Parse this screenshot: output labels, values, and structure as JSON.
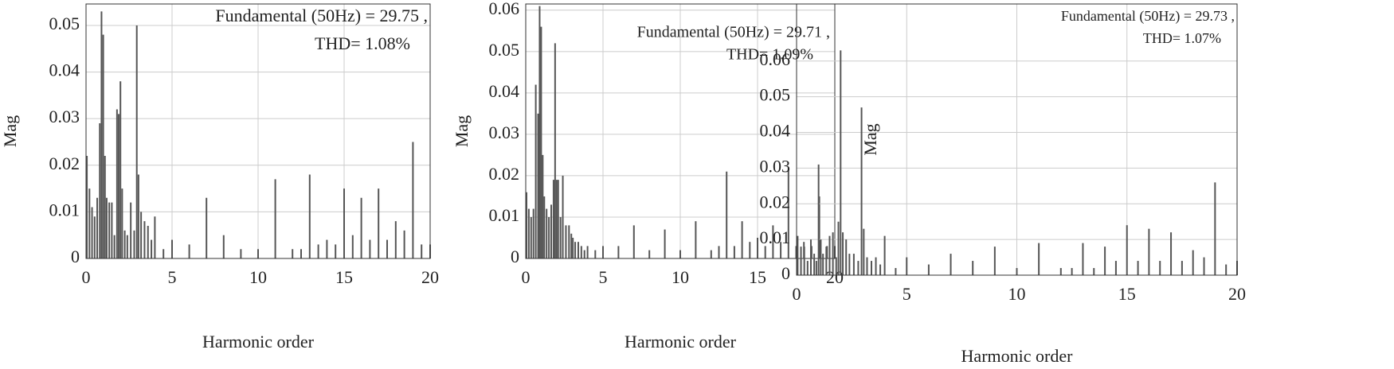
{
  "chart_data": [
    {
      "type": "stem",
      "ylabel": "Mag",
      "xlabel": "Harmonic order",
      "annotation": [
        "Fundamental (50Hz) = 29.75 ,",
        "THD= 1.08%"
      ],
      "color": "#555555",
      "grid": true,
      "xlim": [
        0,
        20
      ],
      "xticks": [
        0,
        5,
        10,
        15,
        20
      ],
      "ylim": [
        0,
        0.0546
      ],
      "yticks": [
        0,
        0.01,
        0.02,
        0.03,
        0.04,
        0.05
      ],
      "x": [
        0.05,
        0.2,
        0.35,
        0.5,
        0.65,
        0.8,
        0.9,
        1.0,
        1.1,
        1.2,
        1.35,
        1.5,
        1.65,
        1.8,
        1.9,
        2.0,
        2.1,
        2.25,
        2.4,
        2.6,
        2.8,
        2.95,
        3.05,
        3.2,
        3.4,
        3.6,
        3.8,
        4.0,
        4.5,
        5.0,
        6.0,
        7.0,
        8.0,
        9.0,
        10.0,
        11.0,
        12.0,
        12.5,
        13.0,
        13.5,
        14.0,
        14.5,
        15.0,
        15.5,
        16.0,
        16.5,
        17.0,
        17.5,
        18.0,
        18.5,
        19.0,
        19.5,
        20.0
      ],
      "values": [
        0.022,
        0.015,
        0.011,
        0.009,
        0.013,
        0.029,
        0.053,
        0.048,
        0.022,
        0.013,
        0.012,
        0.012,
        0.005,
        0.032,
        0.031,
        0.038,
        0.015,
        0.006,
        0.005,
        0.012,
        0.006,
        0.05,
        0.018,
        0.01,
        0.008,
        0.007,
        0.004,
        0.009,
        0.002,
        0.004,
        0.003,
        0.013,
        0.005,
        0.002,
        0.002,
        0.017,
        0.002,
        0.002,
        0.018,
        0.003,
        0.004,
        0.003,
        0.015,
        0.005,
        0.013,
        0.004,
        0.015,
        0.004,
        0.008,
        0.006,
        0.025,
        0.003,
        0.003
      ]
    },
    {
      "type": "stem",
      "ylabel": "Mag",
      "xlabel": "Harmonic order",
      "annotation": [
        "Fundamental (50Hz) = 29.71 ,",
        "THD= 1.09%"
      ],
      "color": "#555555",
      "grid": true,
      "xlim": [
        0,
        20
      ],
      "xticks": [
        0,
        5,
        10,
        15,
        20
      ],
      "ylim": [
        0,
        0.0615
      ],
      "yticks": [
        0,
        0.01,
        0.02,
        0.03,
        0.04,
        0.05,
        0.06
      ],
      "x": [
        0.05,
        0.2,
        0.35,
        0.5,
        0.65,
        0.8,
        0.9,
        1.0,
        1.1,
        1.2,
        1.35,
        1.5,
        1.65,
        1.8,
        1.9,
        2.0,
        2.1,
        2.25,
        2.4,
        2.6,
        2.8,
        2.95,
        3.05,
        3.2,
        3.4,
        3.6,
        3.8,
        4.0,
        4.5,
        5.0,
        6.0,
        7.0,
        8.0,
        9.0,
        10.0,
        11.0,
        12.0,
        12.5,
        13.0,
        13.5,
        14.0,
        14.5,
        15.0,
        15.5,
        16.0,
        16.5,
        17.0,
        17.5,
        18.0,
        18.5,
        19.0,
        19.5,
        20.0
      ],
      "values": [
        0.016,
        0.012,
        0.01,
        0.012,
        0.042,
        0.035,
        0.061,
        0.056,
        0.025,
        0.015,
        0.012,
        0.01,
        0.013,
        0.019,
        0.052,
        0.019,
        0.019,
        0.01,
        0.02,
        0.008,
        0.008,
        0.006,
        0.005,
        0.004,
        0.004,
        0.003,
        0.002,
        0.003,
        0.002,
        0.003,
        0.003,
        0.008,
        0.002,
        0.007,
        0.002,
        0.009,
        0.002,
        0.003,
        0.021,
        0.003,
        0.009,
        0.004,
        0.005,
        0.003,
        0.008,
        0.004,
        0.022,
        0.003,
        0.004,
        0.003,
        0.015,
        0.003,
        0.003
      ]
    },
    {
      "type": "stem",
      "ylabel": "Mag",
      "xlabel": "Harmonic order",
      "annotation": [
        "Fundamental (50Hz) = 29.73 ,",
        "THD= 1.07%"
      ],
      "color": "#555555",
      "grid": true,
      "xlim": [
        0,
        20
      ],
      "xticks": [
        0,
        5,
        10,
        15,
        20
      ],
      "ylim": [
        0,
        0.076
      ],
      "yticks": [
        0,
        0.01,
        0.02,
        0.03,
        0.04,
        0.05,
        0.06
      ],
      "x": [
        0.05,
        0.2,
        0.35,
        0.5,
        0.65,
        0.8,
        0.9,
        1.0,
        1.1,
        1.2,
        1.35,
        1.5,
        1.65,
        1.8,
        1.9,
        2.0,
        2.1,
        2.25,
        2.4,
        2.6,
        2.8,
        2.95,
        3.05,
        3.2,
        3.4,
        3.6,
        3.8,
        4.0,
        4.5,
        5.0,
        6.0,
        7.0,
        8.0,
        9.0,
        10.0,
        11.0,
        12.0,
        12.5,
        13.0,
        13.5,
        14.0,
        14.5,
        15.0,
        15.5,
        16.0,
        16.5,
        17.0,
        17.5,
        18.0,
        18.5,
        19.0,
        19.5,
        20.0
      ],
      "values": [
        0.011,
        0.008,
        0.008,
        0.004,
        0.01,
        0.006,
        0.004,
        0.031,
        0.01,
        0.006,
        0.008,
        0.011,
        0.012,
        0.005,
        0.015,
        0.063,
        0.012,
        0.01,
        0.006,
        0.006,
        0.004,
        0.047,
        0.013,
        0.005,
        0.004,
        0.005,
        0.003,
        0.011,
        0.002,
        0.005,
        0.003,
        0.006,
        0.004,
        0.008,
        0.002,
        0.009,
        0.002,
        0.002,
        0.009,
        0.002,
        0.008,
        0.004,
        0.014,
        0.004,
        0.013,
        0.004,
        0.012,
        0.004,
        0.007,
        0.005,
        0.026,
        0.003,
        0.004
      ]
    }
  ]
}
